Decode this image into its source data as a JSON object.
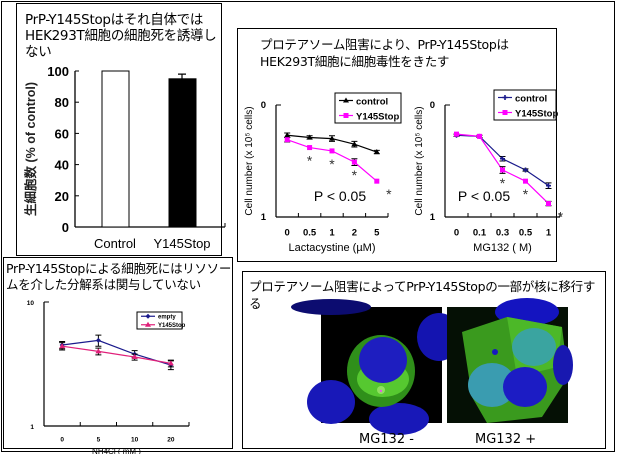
{
  "panels": {
    "viability": {
      "title": "PrP-Y145Stopはそれ自体ではHEK293T細胞の細胞死を誘導しない"
    },
    "proteasome": {
      "title": "プロテアソーム阻害により、PrP-Y145StopはHEK293T細胞に細胞毒性をきたす"
    },
    "lysosome": {
      "title": "PrP-Y145Stopによる細胞死にはリソソームを介した分解系は関与していない"
    },
    "localization": {
      "title": "プロテアソーム阻害によってPrP-Y145Stopの一部が核に移行する",
      "images": [
        {
          "caption": "MG132 -",
          "description_icon": "microscopy-image"
        },
        {
          "caption": "MG132 +",
          "description_icon": "microscopy-image"
        }
      ]
    }
  },
  "colors": {
    "black": "#000000",
    "magenta": "#ff00ff",
    "navy": "#1a1a8c",
    "pink": "#e0207a"
  },
  "chart_data": [
    {
      "id": "viability",
      "type": "bar",
      "categories": [
        "Control",
        "Y145Stop"
      ],
      "values": [
        100,
        95
      ],
      "errors": [
        0,
        3
      ],
      "bar_colors": [
        "#ffffff",
        "#000000"
      ],
      "ylabel": "生細胞数 (% of control)",
      "ylim": [
        0,
        100
      ],
      "yticks": [
        "0",
        "20",
        "40",
        "60",
        "80",
        "100"
      ]
    },
    {
      "id": "lactacystine",
      "type": "line",
      "xlabel": "Lactacystine (µM)",
      "ylabel": "Cell number (x 10⁵ cells)",
      "categories": [
        "0",
        "0.5",
        "1",
        "2",
        "5"
      ],
      "ylim": [
        1,
        0
      ],
      "yticks": [
        "0",
        "1"
      ],
      "legend": "top-right",
      "annotation": "P < 0.05",
      "significance_marker": "*",
      "series": [
        {
          "name": "control",
          "color": "#000000",
          "marker": "triangle",
          "values": [
            0.27,
            0.29,
            0.3,
            0.35,
            0.42
          ],
          "errors": [
            0.02,
            0.015,
            0.025,
            0.025,
            0.015
          ]
        },
        {
          "name": "Y145Stop",
          "color": "#ff00ff",
          "marker": "square",
          "values": [
            0.31,
            0.38,
            0.41,
            0.51,
            0.68
          ],
          "errors": [
            0.02,
            0.0,
            0.0,
            0.03,
            0.0
          ]
        }
      ],
      "significant_indices": [
        1,
        2,
        3,
        4
      ]
    },
    {
      "id": "mg132",
      "type": "line",
      "xlabel": "MG132 ( M)",
      "ylabel": "Cell number (x 10⁵ cells)",
      "categories": [
        "0",
        "0.1",
        "0.3",
        "0.5",
        "1"
      ],
      "ylim": [
        1,
        0
      ],
      "yticks": [
        "0",
        "1"
      ],
      "legend": "top-right",
      "annotation": "P < 0.05",
      "significance_marker": "*",
      "series": [
        {
          "name": "control",
          "color": "#1a1a8c",
          "marker": "plus",
          "values": [
            0.27,
            0.28,
            0.48,
            0.58,
            0.72
          ],
          "errors": [
            0.01,
            0.01,
            0.02,
            0.01,
            0.025
          ]
        },
        {
          "name": "Y145Stop",
          "color": "#ff00ff",
          "marker": "square",
          "values": [
            0.26,
            0.28,
            0.58,
            0.68,
            0.88
          ],
          "errors": [
            0.0,
            0.0,
            0.03,
            0.0,
            0.02
          ]
        }
      ],
      "significant_indices": [
        2,
        3,
        4
      ]
    },
    {
      "id": "nh4cl",
      "type": "line",
      "xlabel": "NH4Cl ( mM )",
      "ylabel": "",
      "categories": [
        "0",
        "5",
        "10",
        "20"
      ],
      "ylim": [
        1,
        10
      ],
      "yscale": "log",
      "yticks": [
        "1",
        "10"
      ],
      "legend": "top-right",
      "series": [
        {
          "name": "empty",
          "color": "#1a1a8c",
          "marker": "diamond",
          "values": [
            4.5,
            4.9,
            3.8,
            3.1
          ],
          "errors": [
            0.3,
            0.5,
            0.25,
            0.25
          ]
        },
        {
          "name": "Y145Stop",
          "color": "#e0207a",
          "marker": "triangle",
          "values": [
            4.4,
            4.0,
            3.6,
            3.2
          ],
          "errors": [
            0.3,
            0.25,
            0.2,
            0.2
          ]
        }
      ]
    }
  ]
}
